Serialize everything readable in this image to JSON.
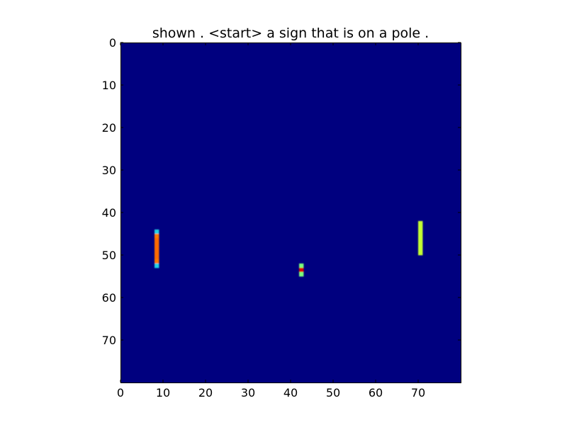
{
  "chart_data": {
    "type": "heatmap",
    "title": "shown . <start> a sign that is on a pole .",
    "xlabel": "",
    "ylabel": "",
    "xlim": [
      0,
      80
    ],
    "ylim": [
      80,
      0
    ],
    "x_ticks": [
      "0",
      "10",
      "20",
      "30",
      "40",
      "50",
      "60",
      "70"
    ],
    "y_ticks": [
      "0",
      "10",
      "20",
      "30",
      "40",
      "50",
      "60",
      "70"
    ],
    "grid": false,
    "colormap": "jet",
    "background_value": 0.0,
    "background_color": "#00007f",
    "regions": [
      {
        "name": "left-bar",
        "cells": [
          {
            "x": 8,
            "y": 44,
            "value": 0.35,
            "color": "#22d3e6"
          },
          {
            "x": 8,
            "y": 45,
            "value": 0.78,
            "color": "#ff7a00"
          },
          {
            "x": 8,
            "y": 46,
            "value": 0.8,
            "color": "#ff6a00"
          },
          {
            "x": 8,
            "y": 47,
            "value": 0.8,
            "color": "#ff6a00"
          },
          {
            "x": 8,
            "y": 48,
            "value": 0.8,
            "color": "#ff6a00"
          },
          {
            "x": 8,
            "y": 49,
            "value": 0.8,
            "color": "#ff6a00"
          },
          {
            "x": 8,
            "y": 50,
            "value": 0.8,
            "color": "#ff6a00"
          },
          {
            "x": 8,
            "y": 51,
            "value": 0.78,
            "color": "#ff7a00"
          },
          {
            "x": 8,
            "y": 52,
            "value": 0.35,
            "color": "#22d3e6"
          }
        ]
      },
      {
        "name": "middle-bar",
        "cells": [
          {
            "x": 42,
            "y": 52,
            "value": 0.45,
            "color": "#7dff7a"
          },
          {
            "x": 42,
            "y": 53,
            "value": 0.88,
            "color": "#e00000"
          },
          {
            "x": 42,
            "y": 54,
            "value": 0.45,
            "color": "#7dff7a"
          }
        ]
      },
      {
        "name": "right-bar",
        "cells": [
          {
            "x": 70,
            "y": 42,
            "value": 0.6,
            "color": "#c4ff33"
          },
          {
            "x": 70,
            "y": 43,
            "value": 0.6,
            "color": "#c4ff33"
          },
          {
            "x": 70,
            "y": 44,
            "value": 0.6,
            "color": "#c4ff33"
          },
          {
            "x": 70,
            "y": 45,
            "value": 0.6,
            "color": "#c4ff33"
          },
          {
            "x": 70,
            "y": 46,
            "value": 0.6,
            "color": "#c4ff33"
          },
          {
            "x": 70,
            "y": 47,
            "value": 0.6,
            "color": "#c4ff33"
          },
          {
            "x": 70,
            "y": 48,
            "value": 0.6,
            "color": "#c4ff33"
          },
          {
            "x": 70,
            "y": 49,
            "value": 0.6,
            "color": "#c4ff33"
          }
        ]
      }
    ]
  }
}
